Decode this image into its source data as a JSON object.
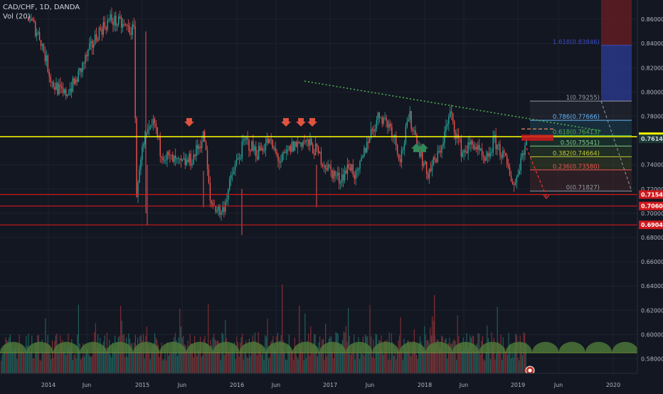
{
  "header": {
    "symbol": "CAD/CHF, 1D, DANDA",
    "volume_indicator": "Vol (20)"
  },
  "colors": {
    "background": "#131722",
    "grid": "#1e222d",
    "up": "#26a69a",
    "down": "#ef5350",
    "yellow_line": "#ffff00",
    "red_line": "#e01010",
    "trendline": "#4caf50",
    "fib_blue": "#2a3a8f",
    "fib_red": "#6b1e24",
    "volume_ma": "#4f7a3a"
  },
  "chart_data": {
    "type": "candlestick",
    "title": "CAD/CHF, 1D, DANDA",
    "x_tick_labels": [
      "2014",
      "Jun",
      "2015",
      "Jun",
      "2016",
      "Jun",
      "2017",
      "Jun",
      "2018",
      "Jun",
      "2019",
      "Jun",
      "2020"
    ],
    "y_tick_labels": [
      "0.86000",
      "0.84000",
      "0.82000",
      "0.80000",
      "0.78000",
      "0.74000",
      "0.72000",
      "0.70000",
      "0.68000",
      "0.66000",
      "0.64000",
      "0.62000",
      "0.60000",
      "0.58000"
    ],
    "y_ticks": [
      0.86,
      0.84,
      0.82,
      0.8,
      0.78,
      0.74,
      0.72,
      0.7,
      0.68,
      0.66,
      0.64,
      0.62,
      0.6,
      0.58
    ],
    "ylim": [
      0.568,
      0.87
    ],
    "price_path": [
      [
        0.0,
        0.862
      ],
      [
        0.02,
        0.845
      ],
      [
        0.04,
        0.808
      ],
      [
        0.06,
        0.797
      ],
      [
        0.08,
        0.808
      ],
      [
        0.1,
        0.83
      ],
      [
        0.12,
        0.85
      ],
      [
        0.14,
        0.86
      ],
      [
        0.16,
        0.855
      ],
      [
        0.18,
        0.85
      ],
      [
        0.185,
        0.705
      ],
      [
        0.19,
        0.745
      ],
      [
        0.2,
        0.76
      ],
      [
        0.215,
        0.775
      ],
      [
        0.225,
        0.752
      ],
      [
        0.24,
        0.745
      ],
      [
        0.26,
        0.74
      ],
      [
        0.28,
        0.745
      ],
      [
        0.3,
        0.765
      ],
      [
        0.31,
        0.71
      ],
      [
        0.33,
        0.7
      ],
      [
        0.35,
        0.735
      ],
      [
        0.37,
        0.76
      ],
      [
        0.39,
        0.75
      ],
      [
        0.41,
        0.76
      ],
      [
        0.43,
        0.742
      ],
      [
        0.45,
        0.755
      ],
      [
        0.47,
        0.76
      ],
      [
        0.49,
        0.752
      ],
      [
        0.51,
        0.738
      ],
      [
        0.53,
        0.728
      ],
      [
        0.55,
        0.74
      ],
      [
        0.56,
        0.728
      ],
      [
        0.58,
        0.762
      ],
      [
        0.6,
        0.782
      ],
      [
        0.62,
        0.77
      ],
      [
        0.635,
        0.745
      ],
      [
        0.65,
        0.78
      ],
      [
        0.66,
        0.765
      ],
      [
        0.68,
        0.732
      ],
      [
        0.7,
        0.748
      ],
      [
        0.72,
        0.782
      ],
      [
        0.74,
        0.75
      ],
      [
        0.76,
        0.758
      ],
      [
        0.78,
        0.74
      ],
      [
        0.795,
        0.76
      ],
      [
        0.81,
        0.748
      ],
      [
        0.83,
        0.722
      ],
      [
        0.84,
        0.745
      ],
      [
        0.85,
        0.76
      ]
    ],
    "horizontal_levels": [
      {
        "price": 0.76311,
        "label": "0.76311",
        "color": "#ffff00",
        "tag_text_color": "#131722"
      },
      {
        "price": 0.71547,
        "label": "0.71547",
        "color": "#d0181d",
        "tag_text_color": "#ffffff"
      },
      {
        "price": 0.706,
        "label": "0.70600",
        "color": "#d0181d",
        "tag_text_color": "#ffffff"
      },
      {
        "price": 0.69045,
        "label": "0.69045",
        "color": "#d0181d",
        "tag_text_color": "#ffffff"
      }
    ],
    "last_price": {
      "price": 0.76142,
      "label": "0.76142",
      "color": "#26a69a"
    },
    "fibonacci": [
      {
        "level": "1.618(0.83846)",
        "price": 0.83846,
        "color": "#3b4cc0"
      },
      {
        "level": "1(0.79255)",
        "price": 0.79255,
        "color": "#9598a1"
      },
      {
        "level": "0.786(0.77666)",
        "price": 0.77666,
        "color": "#64b5f6"
      },
      {
        "level": "0.618(0.76413)",
        "price": 0.76413,
        "color": "#4caf50"
      },
      {
        "level": "0.5(0.75541)",
        "price": 0.75541,
        "color": "#81c784"
      },
      {
        "level": "0.382(0.74664)",
        "price": 0.74664,
        "color": "#c0ca33"
      },
      {
        "level": "0.236(0.73580)",
        "price": 0.7358,
        "color": "#ef5350"
      },
      {
        "level": "0(0.71827)",
        "price": 0.71827,
        "color": "#9598a1"
      }
    ],
    "annotations": {
      "down_arrows": 4,
      "up_arrows": 2
    }
  }
}
